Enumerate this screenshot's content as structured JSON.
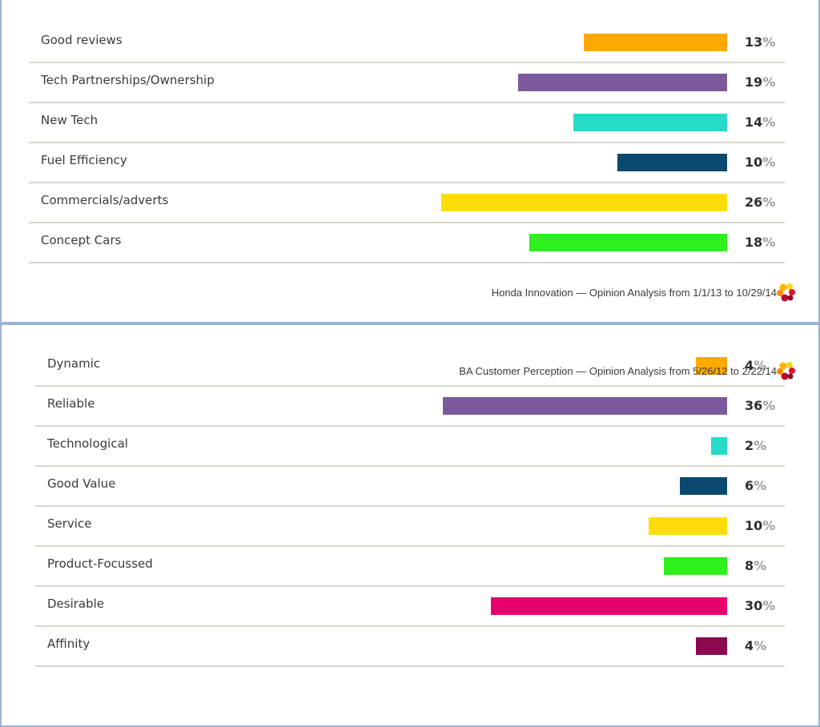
{
  "colors": {
    "orange": "#ffa800",
    "purple": "#7b5a9c",
    "teal": "#26dcc8",
    "navy": "#0b4a6e",
    "yellow": "#ffdd0a",
    "green": "#2ef01c",
    "magenta": "#e6006b",
    "maroon": "#8b0a4f",
    "divider": "#d6d6ce",
    "frame": "#9db3d4"
  },
  "chart_data": [
    {
      "type": "bar",
      "orientation": "horizontal",
      "categories": [
        "Good reviews",
        "Tech Partnerships/Ownership",
        "New Tech",
        "Fuel Efficiency",
        "Commercials/adverts",
        "Concept Cars"
      ],
      "values": [
        13,
        19,
        14,
        10,
        26,
        18
      ],
      "value_labels": [
        "13",
        "19",
        "14",
        "10",
        "26",
        "18"
      ],
      "colors": [
        "#ffa800",
        "#7b5a9c",
        "#26dcc8",
        "#0b4a6e",
        "#ffdd0a",
        "#2ef01c"
      ],
      "unit": "%",
      "caption": "Honda Innovation — Opinion Analysis from 1/1/13 to 10/29/14"
    },
    {
      "type": "bar",
      "orientation": "horizontal",
      "categories": [
        "Dynamic",
        "Reliable",
        "Technological",
        "Good Value",
        "Service",
        "Product-Focussed",
        "Desirable",
        "Affinity"
      ],
      "values": [
        4,
        36,
        2,
        6,
        10,
        8,
        30,
        4
      ],
      "value_labels": [
        "4",
        "36",
        "2",
        "6",
        "10",
        "8",
        "30",
        "4"
      ],
      "colors": [
        "#ffa800",
        "#7b5a9c",
        "#26dcc8",
        "#0b4a6e",
        "#ffdd0a",
        "#2ef01c",
        "#e6006b",
        "#8b0a4f"
      ],
      "unit": "%",
      "caption": "BA Customer Perception  — Opinion Analysis from 5/26/12 to 2/22/14"
    }
  ]
}
